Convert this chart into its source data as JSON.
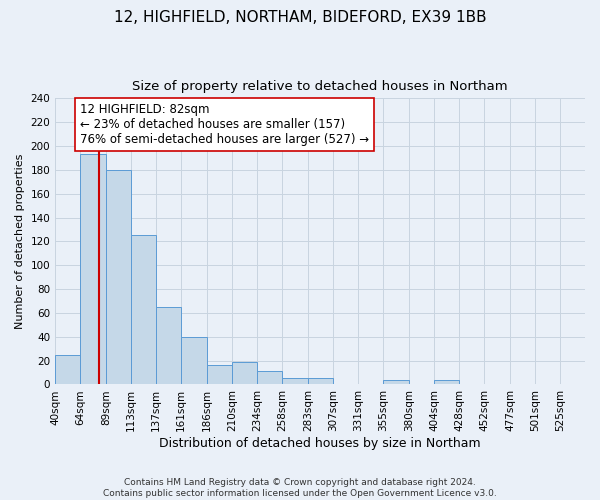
{
  "title": "12, HIGHFIELD, NORTHAM, BIDEFORD, EX39 1BB",
  "subtitle": "Size of property relative to detached houses in Northam",
  "xlabel": "Distribution of detached houses by size in Northam",
  "ylabel": "Number of detached properties",
  "bin_labels": [
    "40sqm",
    "64sqm",
    "89sqm",
    "113sqm",
    "137sqm",
    "161sqm",
    "186sqm",
    "210sqm",
    "234sqm",
    "258sqm",
    "283sqm",
    "307sqm",
    "331sqm",
    "355sqm",
    "380sqm",
    "404sqm",
    "428sqm",
    "452sqm",
    "477sqm",
    "501sqm",
    "525sqm"
  ],
  "bin_edges": [
    40,
    64,
    89,
    113,
    137,
    161,
    186,
    210,
    234,
    258,
    283,
    307,
    331,
    355,
    380,
    404,
    428,
    452,
    477,
    501,
    525,
    549
  ],
  "counts": [
    25,
    193,
    180,
    125,
    65,
    40,
    16,
    19,
    11,
    5,
    5,
    0,
    0,
    4,
    0,
    4,
    0,
    0,
    0,
    0,
    0
  ],
  "bar_color": "#c5d8e8",
  "bar_edge_color": "#5b9bd5",
  "property_value": 82,
  "property_line_color": "#cc0000",
  "annotation_line1": "12 HIGHFIELD: 82sqm",
  "annotation_line2": "← 23% of detached houses are smaller (157)",
  "annotation_line3": "76% of semi-detached houses are larger (527) →",
  "annotation_box_edge_color": "#cc0000",
  "annotation_box_face_color": "#ffffff",
  "ylim": [
    0,
    240
  ],
  "yticks": [
    0,
    20,
    40,
    60,
    80,
    100,
    120,
    140,
    160,
    180,
    200,
    220,
    240
  ],
  "grid_color": "#c8d4e0",
  "background_color": "#eaf0f8",
  "footer_text": "Contains HM Land Registry data © Crown copyright and database right 2024.\nContains public sector information licensed under the Open Government Licence v3.0.",
  "title_fontsize": 11,
  "subtitle_fontsize": 9.5,
  "xlabel_fontsize": 9,
  "ylabel_fontsize": 8,
  "tick_fontsize": 7.5,
  "annotation_fontsize": 8.5,
  "footer_fontsize": 6.5
}
